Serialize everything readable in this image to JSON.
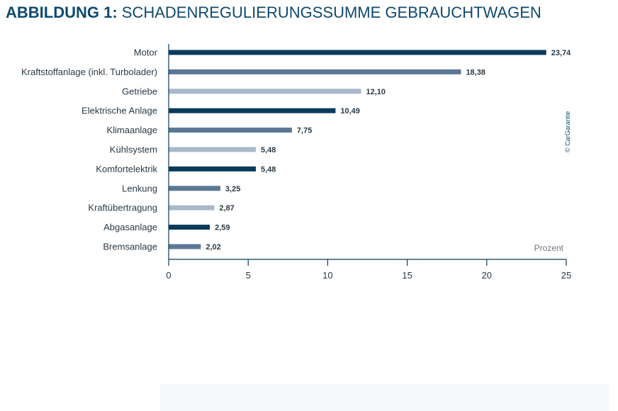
{
  "title": {
    "prefix": "ABBILDUNG 1:",
    "text": "SCHADENREGULIERUNGSSUMME GEBRAUCHTWAGEN"
  },
  "colors": {
    "title": "#0e4a6e",
    "dark": "#0b3a5a",
    "medium": "#5b7793",
    "light": "#a9b9cb",
    "axis": "#0b3a5a",
    "text": "#2b3a46"
  },
  "chart_data": {
    "type": "bar",
    "orientation": "horizontal",
    "categories": [
      "Motor",
      "Kraftstoffanlage (inkl. Turbolader)",
      "Getriebe",
      "Elektrische Anlage",
      "Klimaanlage",
      "Kühlsystem",
      "Komfortelektrik",
      "Lenkung",
      "Kraftübertragung",
      "Abgasanlage",
      "Bremsanlage"
    ],
    "values": [
      23.74,
      18.38,
      12.1,
      10.49,
      7.75,
      5.48,
      5.48,
      3.25,
      2.87,
      2.59,
      2.02
    ],
    "value_labels": [
      "23,74",
      "18,38",
      "12,10",
      "10,49",
      "7,75",
      "5,48",
      "5,48",
      "3,25",
      "2,87",
      "2,59",
      "2,02"
    ],
    "bar_colors": [
      "dark",
      "medium",
      "light",
      "dark",
      "medium",
      "light",
      "dark",
      "medium",
      "light",
      "dark",
      "medium"
    ],
    "xlim": [
      0,
      25
    ],
    "xticks": [
      0,
      5,
      10,
      15,
      20,
      25
    ],
    "xtick_labels": [
      "0",
      "5",
      "10",
      "15",
      "20",
      "25"
    ],
    "xlabel": "Prozent",
    "grid": false,
    "legend": "none"
  },
  "copyright": "© CarGarantie"
}
